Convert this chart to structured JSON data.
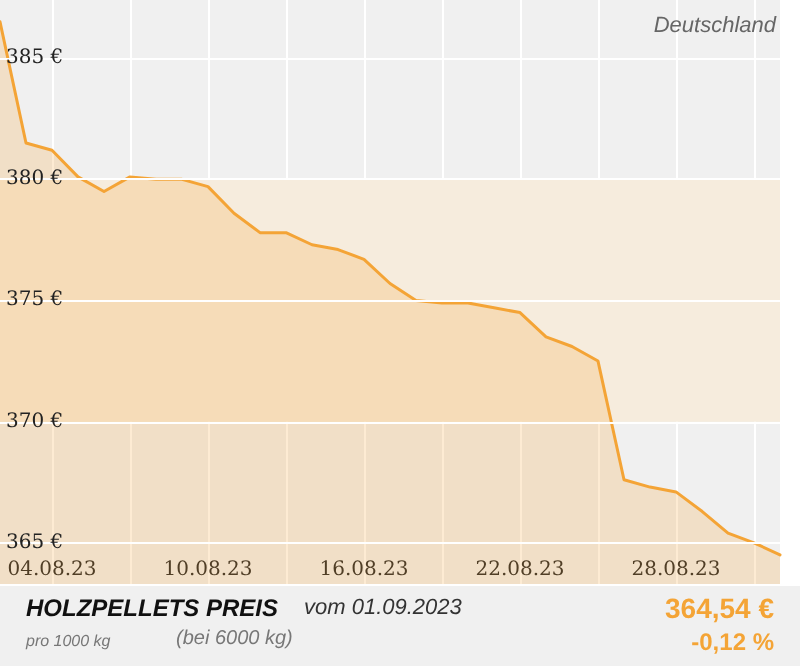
{
  "chart_data": {
    "type": "area",
    "title": "HOLZPELLETS PREIS",
    "subtitle": "Deutschland",
    "annotations": [
      "vom 01.09.2023",
      "pro 1000 kg",
      "(bei 6000 kg)",
      "364,54 €",
      "-0,12 %"
    ],
    "x": [
      "2023-08-02",
      "2023-08-03",
      "2023-08-04",
      "2023-08-05",
      "2023-08-06",
      "2023-08-07",
      "2023-08-08",
      "2023-08-09",
      "2023-08-10",
      "2023-08-11",
      "2023-08-12",
      "2023-08-13",
      "2023-08-14",
      "2023-08-15",
      "2023-08-16",
      "2023-08-17",
      "2023-08-18",
      "2023-08-19",
      "2023-08-20",
      "2023-08-21",
      "2023-08-22",
      "2023-08-23",
      "2023-08-24",
      "2023-08-25",
      "2023-08-26",
      "2023-08-27",
      "2023-08-28",
      "2023-08-29",
      "2023-08-30",
      "2023-08-31",
      "2023-09-01"
    ],
    "series": [
      {
        "color": "#f4a436",
        "values": [
          386.5,
          381.5,
          381.2,
          380.1,
          379.5,
          380.1,
          380.0,
          380.0,
          379.7,
          378.6,
          377.8,
          377.8,
          377.3,
          377.1,
          376.7,
          375.7,
          375.0,
          374.9,
          374.9,
          374.7,
          374.5,
          373.5,
          373.1,
          372.5,
          367.6,
          367.3,
          367.1,
          366.3,
          365.4,
          365.0,
          364.5
        ]
      }
    ],
    "xlim": [
      "2023-08-02",
      "2023-09-01"
    ],
    "xticks": [
      {
        "value": "2023-08-04",
        "label": "04.08.23"
      },
      {
        "value": "2023-08-07",
        "label": null
      },
      {
        "value": "2023-08-10",
        "label": "10.08.23"
      },
      {
        "value": "2023-08-13",
        "label": null
      },
      {
        "value": "2023-08-16",
        "label": "16.08.23"
      },
      {
        "value": "2023-08-19",
        "label": null
      },
      {
        "value": "2023-08-22",
        "label": "22.08.23"
      },
      {
        "value": "2023-08-25",
        "label": null
      },
      {
        "value": "2023-08-28",
        "label": "28.08.23"
      },
      {
        "value": "2023-08-31",
        "label": null
      }
    ],
    "ylim": [
      363.3,
      387.4
    ],
    "yticks": [
      {
        "value": 365,
        "label": "365 €"
      },
      {
        "value": 370,
        "label": "370 €"
      },
      {
        "value": 375,
        "label": "375 €"
      },
      {
        "value": 380,
        "label": "380 €"
      },
      {
        "value": 385,
        "label": "385 €"
      }
    ],
    "bands": [
      {
        "axis": "y",
        "from": 370,
        "to": 380,
        "color": "#f6ecdd"
      }
    ],
    "grid": true,
    "marker": "none",
    "line_style": "solid"
  }
}
